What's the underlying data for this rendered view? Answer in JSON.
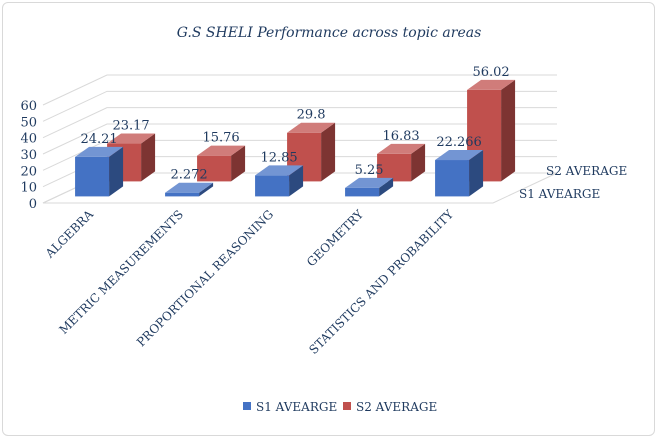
{
  "chart_data": {
    "type": "bar",
    "title": "G.S SHELI Performance across topic areas",
    "categories": [
      "ALGEBRA",
      "METRIC MEASUREMENTS",
      "PROPORTIONAL REASONING",
      "GEOMETRY",
      "STATISTICS AND PROBABILITY"
    ],
    "series": [
      {
        "name": "S1 AVEARGE",
        "values": [
          24.21,
          2.272,
          12.85,
          5.25,
          22.266
        ],
        "labels": [
          "24.21",
          "2.272",
          "12.85",
          "5.25",
          "22.266"
        ]
      },
      {
        "name": "S2 AVERAGE",
        "values": [
          23.17,
          15.76,
          29.8,
          16.83,
          56.02
        ],
        "labels": [
          "23.17",
          "15.76",
          "29.8",
          "16.83",
          "56.02"
        ]
      }
    ],
    "ylim": [
      0,
      60
    ],
    "yticks": [
      "0",
      "10",
      "20",
      "30",
      "40",
      "50",
      "60"
    ],
    "grid": true,
    "legend": "bottom",
    "three_d": true,
    "colors": {
      "s1": "#4472c4",
      "s2": "#c0504d"
    }
  }
}
